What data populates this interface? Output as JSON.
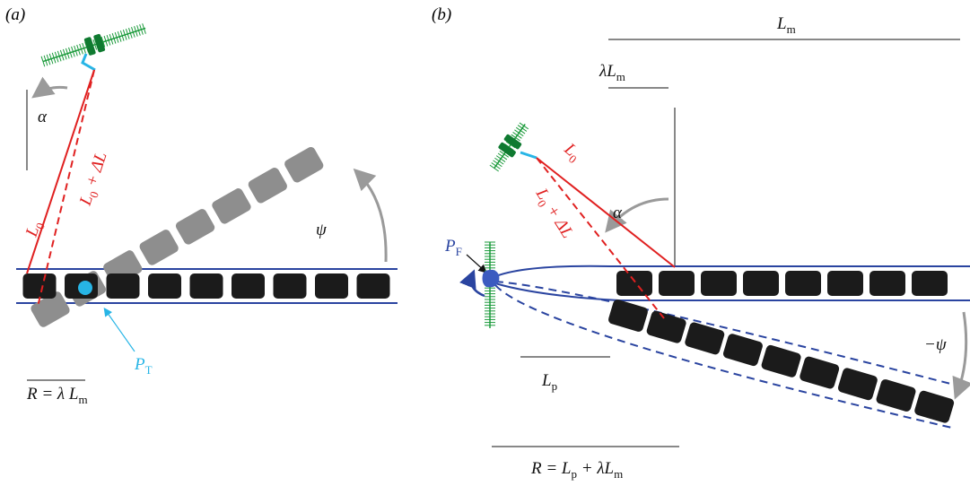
{
  "panel_a": {
    "tag": "(a)",
    "alpha": [
      "α"
    ],
    "l0": [
      "L",
      "0"
    ],
    "l0_dl": [
      "L",
      "0",
      " + ΔL"
    ],
    "psi": [
      "ψ"
    ],
    "pt": [
      "P",
      "T"
    ],
    "radius": [
      "R = λ L",
      "m"
    ]
  },
  "panel_b": {
    "tag": "(b)",
    "lm": [
      "L",
      "m"
    ],
    "lambda_lm": [
      "λL",
      "m"
    ],
    "alpha": [
      "α"
    ],
    "l0": [
      "L",
      "0"
    ],
    "l0_dl": [
      "L",
      "0",
      " + ΔL"
    ],
    "pf": [
      "P",
      "F"
    ],
    "lp": [
      "L",
      "p"
    ],
    "minus_psi": [
      "−ψ"
    ],
    "radius": [
      "R = L",
      "p",
      " + λL",
      "m"
    ]
  }
}
